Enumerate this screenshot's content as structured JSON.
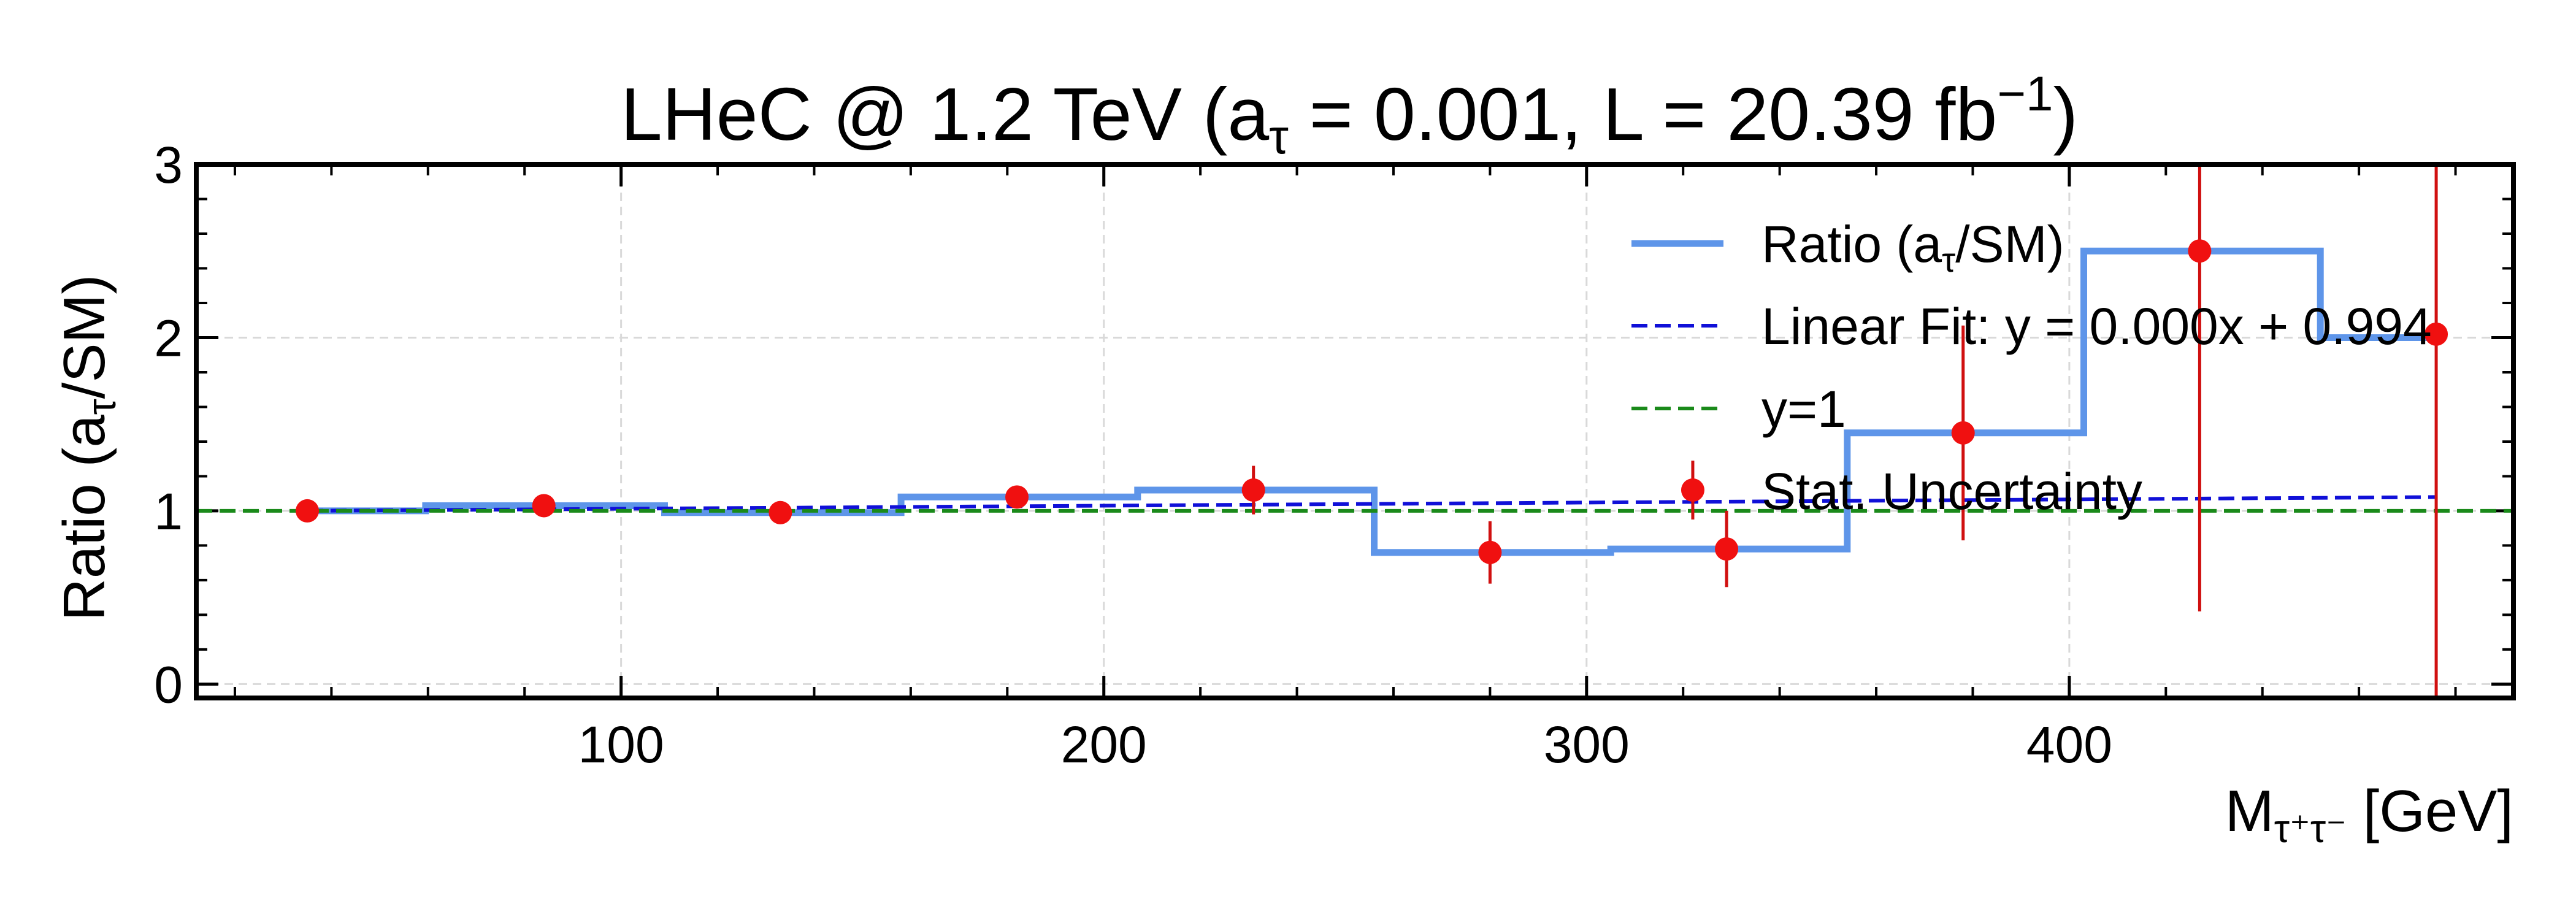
{
  "chart_data": {
    "type": "line",
    "title_parts": {
      "main": "LHeC @ 1.2 TeV (a",
      "main_sub": "τ",
      "eq1": " = 0.001, L = 20.39 fb",
      "sup": "−1",
      "close": ")"
    },
    "ylabel_parts": {
      "pre": "Ratio (a",
      "sub": "τ",
      "post": "/SM)"
    },
    "xlabel_parts": {
      "pre": "M",
      "sub": "τ⁺τ⁻",
      "post": " [GeV]"
    },
    "xlim": [
      12,
      492
    ],
    "ylim": [
      -0.08,
      3.0
    ],
    "x_ticks": [
      100,
      200,
      300,
      400
    ],
    "y_ticks": [
      0,
      1,
      2,
      3
    ],
    "grid": true,
    "legend_position": "top-right",
    "legend": [
      {
        "label_pre": "Ratio (a",
        "label_sub": "τ",
        "label_post": "/SM)"
      },
      {
        "label_pre": "Linear Fit: y = 0.000x + 0.994",
        "label_sub": "",
        "label_post": ""
      },
      {
        "label_pre": "y=1",
        "label_sub": "",
        "label_post": ""
      },
      {
        "label_pre": "Stat. Uncertainty",
        "label_sub": "",
        "label_post": ""
      }
    ],
    "step_series": {
      "bin_edges": [
        35,
        59.5,
        109,
        158,
        207,
        256,
        305,
        354,
        403,
        452,
        476
      ],
      "values": [
        1.0,
        1.03,
        0.99,
        1.08,
        1.12,
        0.76,
        0.78,
        1.45,
        2.5,
        2.0
      ]
    },
    "points": [
      {
        "x": 35,
        "y": 1.0,
        "err": 0.02
      },
      {
        "x": 84,
        "y": 1.03,
        "err": 0.03
      },
      {
        "x": 133,
        "y": 0.99,
        "err": 0.03
      },
      {
        "x": 182,
        "y": 1.08,
        "err": 0.06
      },
      {
        "x": 231,
        "y": 1.12,
        "err": 0.14
      },
      {
        "x": 280,
        "y": 0.76,
        "err": 0.18
      },
      {
        "x": 322,
        "y": 1.12,
        "err": 0.17
      },
      {
        "x": 329,
        "y": 0.78,
        "err": 0.22
      },
      {
        "x": 378,
        "y": 1.45,
        "err": 0.62
      },
      {
        "x": 427,
        "y": 2.5,
        "err": 2.08
      },
      {
        "x": 476,
        "y": 2.02,
        "err": 2.4
      }
    ],
    "linear_fit": {
      "slope": 0.00018,
      "intercept": 0.994,
      "x_range": [
        35,
        476
      ]
    },
    "reference_line": {
      "y": 1
    },
    "colors": {
      "step": "#5e95e9",
      "fit": "#1010d8",
      "reference": "#1a8a1a",
      "points": "#f01010",
      "errorbar": "#d01010",
      "grid": "#d9d9d9",
      "axis": "#000000"
    }
  }
}
